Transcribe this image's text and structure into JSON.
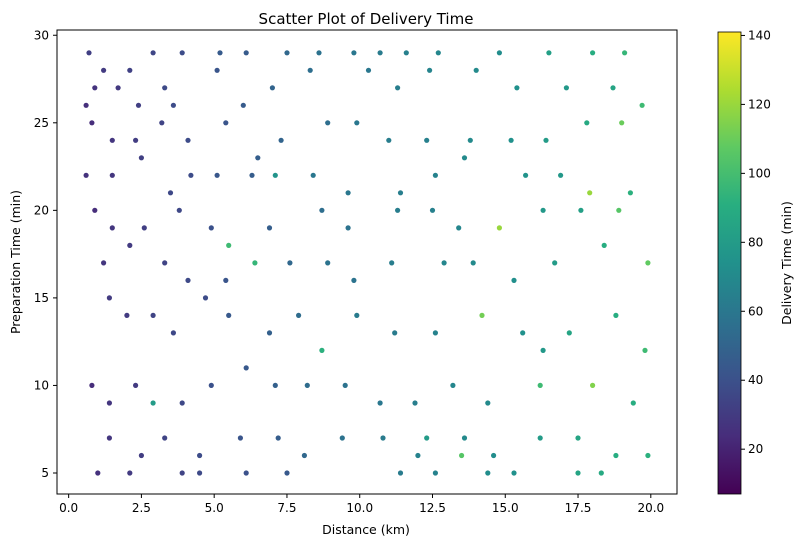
{
  "chart_data": {
    "type": "scatter",
    "title": "Scatter Plot of Delivery Time",
    "xlabel": "Distance (km)",
    "ylabel": "Preparation Time (min)",
    "colorbar_label": "Delivery Time (min)",
    "colormap": "viridis",
    "xlim": [
      -0.4,
      20.9
    ],
    "ylim": [
      3.8,
      30.3
    ],
    "clim": [
      7,
      141
    ],
    "xticks": [
      {
        "v": 0,
        "label": "0.0"
      },
      {
        "v": 2.5,
        "label": "2.5"
      },
      {
        "v": 5,
        "label": "5.0"
      },
      {
        "v": 7.5,
        "label": "7.5"
      },
      {
        "v": 10,
        "label": "10.0"
      },
      {
        "v": 12.5,
        "label": "12.5"
      },
      {
        "v": 15,
        "label": "15.0"
      },
      {
        "v": 17.5,
        "label": "17.5"
      },
      {
        "v": 20,
        "label": "20.0"
      }
    ],
    "yticks": [
      {
        "v": 5,
        "label": "5"
      },
      {
        "v": 10,
        "label": "10"
      },
      {
        "v": 15,
        "label": "15"
      },
      {
        "v": 20,
        "label": "20"
      },
      {
        "v": 25,
        "label": "25"
      },
      {
        "v": 30,
        "label": "30"
      }
    ],
    "cticks": [
      {
        "v": 20,
        "label": "20"
      },
      {
        "v": 40,
        "label": "40"
      },
      {
        "v": 60,
        "label": "60"
      },
      {
        "v": 80,
        "label": "80"
      },
      {
        "v": 100,
        "label": "100"
      },
      {
        "v": 120,
        "label": "120"
      },
      {
        "v": 140,
        "label": "140"
      }
    ],
    "grid": false,
    "points": [
      [
        0.7,
        29,
        32
      ],
      [
        1.2,
        28,
        30
      ],
      [
        2.1,
        28,
        33
      ],
      [
        2.9,
        29,
        35
      ],
      [
        3.9,
        29,
        38
      ],
      [
        5.2,
        29,
        45
      ],
      [
        6.1,
        29,
        45
      ],
      [
        7.5,
        29,
        52
      ],
      [
        8.6,
        29,
        57
      ],
      [
        9.8,
        29,
        60
      ],
      [
        10.7,
        29,
        62
      ],
      [
        11.6,
        29,
        65
      ],
      [
        12.7,
        29,
        68
      ],
      [
        14.8,
        29,
        72
      ],
      [
        16.5,
        29,
        82
      ],
      [
        18,
        29,
        90
      ],
      [
        19.1,
        29,
        95
      ],
      [
        0.6,
        26,
        25
      ],
      [
        0.9,
        27,
        27
      ],
      [
        1.7,
        27,
        29
      ],
      [
        2.4,
        26,
        32
      ],
      [
        3.3,
        27,
        37
      ],
      [
        3.6,
        26,
        38
      ],
      [
        5.1,
        28,
        42
      ],
      [
        6,
        26,
        45
      ],
      [
        7,
        27,
        50
      ],
      [
        8.3,
        28,
        55
      ],
      [
        10.3,
        28,
        60
      ],
      [
        11.3,
        27,
        64
      ],
      [
        12.4,
        28,
        67
      ],
      [
        14,
        28,
        70
      ],
      [
        15.4,
        27,
        74
      ],
      [
        17.1,
        27,
        78
      ],
      [
        18.7,
        27,
        85
      ],
      [
        19.7,
        26,
        98
      ],
      [
        0.8,
        25,
        24
      ],
      [
        1.5,
        24,
        28
      ],
      [
        2.3,
        24,
        31
      ],
      [
        3.2,
        25,
        34
      ],
      [
        4.1,
        24,
        38
      ],
      [
        5.4,
        25,
        42
      ],
      [
        6.5,
        23,
        47
      ],
      [
        7.3,
        24,
        50
      ],
      [
        8.9,
        25,
        55
      ],
      [
        9.9,
        25,
        60
      ],
      [
        11,
        24,
        63
      ],
      [
        12.3,
        24,
        65
      ],
      [
        13.8,
        24,
        70
      ],
      [
        15.2,
        24,
        74
      ],
      [
        16.4,
        24,
        80
      ],
      [
        17.8,
        25,
        88
      ],
      [
        19,
        25,
        110
      ],
      [
        0.6,
        22,
        26
      ],
      [
        1.5,
        22,
        28
      ],
      [
        2.5,
        23,
        32
      ],
      [
        3.5,
        21,
        36
      ],
      [
        4.2,
        22,
        38
      ],
      [
        5.1,
        22,
        43
      ],
      [
        6.3,
        22,
        46
      ],
      [
        7.1,
        22,
        76
      ],
      [
        8.4,
        22,
        60
      ],
      [
        9.6,
        21,
        60
      ],
      [
        11.4,
        21,
        64
      ],
      [
        12.6,
        22,
        66
      ],
      [
        13.6,
        23,
        70
      ],
      [
        15.7,
        22,
        75
      ],
      [
        16.9,
        22,
        78
      ],
      [
        17.9,
        21,
        120
      ],
      [
        19.3,
        21,
        92
      ],
      [
        0.9,
        20,
        24
      ],
      [
        1.5,
        19,
        28
      ],
      [
        2.6,
        19,
        32
      ],
      [
        3.8,
        20,
        36
      ],
      [
        4.9,
        19,
        40
      ],
      [
        5.5,
        18,
        98
      ],
      [
        6.9,
        19,
        47
      ],
      [
        8.7,
        20,
        55
      ],
      [
        9.6,
        19,
        58
      ],
      [
        11.3,
        20,
        63
      ],
      [
        12.5,
        20,
        65
      ],
      [
        13.4,
        19,
        68
      ],
      [
        14.8,
        19,
        120
      ],
      [
        16.3,
        20,
        78
      ],
      [
        17.6,
        20,
        82
      ],
      [
        18.9,
        20,
        105
      ],
      [
        1.2,
        17,
        28
      ],
      [
        2.1,
        18,
        30
      ],
      [
        3.3,
        17,
        34
      ],
      [
        4.1,
        16,
        37
      ],
      [
        5.4,
        16,
        42
      ],
      [
        6.4,
        17,
        95
      ],
      [
        7.6,
        17,
        52
      ],
      [
        8.9,
        17,
        58
      ],
      [
        9.8,
        16,
        58
      ],
      [
        11.1,
        17,
        63
      ],
      [
        12.9,
        17,
        68
      ],
      [
        13.9,
        17,
        70
      ],
      [
        15.3,
        16,
        73
      ],
      [
        16.7,
        17,
        80
      ],
      [
        18.4,
        18,
        90
      ],
      [
        19.9,
        17,
        108
      ],
      [
        1.4,
        15,
        30
      ],
      [
        2,
        14,
        30
      ],
      [
        2.9,
        14,
        34
      ],
      [
        3.6,
        13,
        36
      ],
      [
        4.7,
        15,
        38
      ],
      [
        5.5,
        14,
        44
      ],
      [
        6.9,
        13,
        48
      ],
      [
        7.9,
        14,
        54
      ],
      [
        8.7,
        12,
        92
      ],
      [
        9.9,
        14,
        62
      ],
      [
        11.2,
        13,
        62
      ],
      [
        12.6,
        13,
        66
      ],
      [
        14.2,
        14,
        112
      ],
      [
        15.6,
        13,
        74
      ],
      [
        16.3,
        12,
        78
      ],
      [
        17.2,
        13,
        85
      ],
      [
        18.8,
        14,
        90
      ],
      [
        19.8,
        12,
        98
      ],
      [
        0.8,
        10,
        24
      ],
      [
        1.4,
        9,
        28
      ],
      [
        2.3,
        10,
        30
      ],
      [
        2.9,
        9,
        80
      ],
      [
        3.9,
        9,
        36
      ],
      [
        4.9,
        10,
        40
      ],
      [
        6.1,
        11,
        44
      ],
      [
        7.1,
        10,
        48
      ],
      [
        8.2,
        10,
        54
      ],
      [
        9.5,
        10,
        58
      ],
      [
        10.7,
        9,
        60
      ],
      [
        11.9,
        9,
        64
      ],
      [
        13.2,
        10,
        68
      ],
      [
        14.4,
        9,
        70
      ],
      [
        16.2,
        10,
        98
      ],
      [
        18,
        10,
        115
      ],
      [
        19.4,
        9,
        90
      ],
      [
        1.4,
        7,
        28
      ],
      [
        2.5,
        6,
        31
      ],
      [
        3.3,
        7,
        34
      ],
      [
        4.5,
        6,
        38
      ],
      [
        5.9,
        7,
        42
      ],
      [
        7.2,
        7,
        46
      ],
      [
        8.1,
        6,
        52
      ],
      [
        9.4,
        7,
        57
      ],
      [
        10.8,
        7,
        62
      ],
      [
        12,
        6,
        66
      ],
      [
        12.3,
        7,
        80
      ],
      [
        13.6,
        7,
        70
      ],
      [
        14.6,
        6,
        72
      ],
      [
        16.2,
        7,
        80
      ],
      [
        17.5,
        7,
        85
      ],
      [
        18.8,
        6,
        90
      ],
      [
        19.9,
        6,
        92
      ],
      [
        1,
        5,
        26
      ],
      [
        2.1,
        5,
        30
      ],
      [
        3.9,
        5,
        34
      ],
      [
        4.5,
        5,
        37
      ],
      [
        6.1,
        5,
        40
      ],
      [
        7.5,
        5,
        44
      ],
      [
        11.4,
        5,
        62
      ],
      [
        12.6,
        5,
        66
      ],
      [
        13.5,
        6,
        105
      ],
      [
        14.4,
        5,
        72
      ],
      [
        15.3,
        5,
        74
      ],
      [
        17.5,
        5,
        85
      ],
      [
        18.3,
        5,
        88
      ]
    ]
  }
}
